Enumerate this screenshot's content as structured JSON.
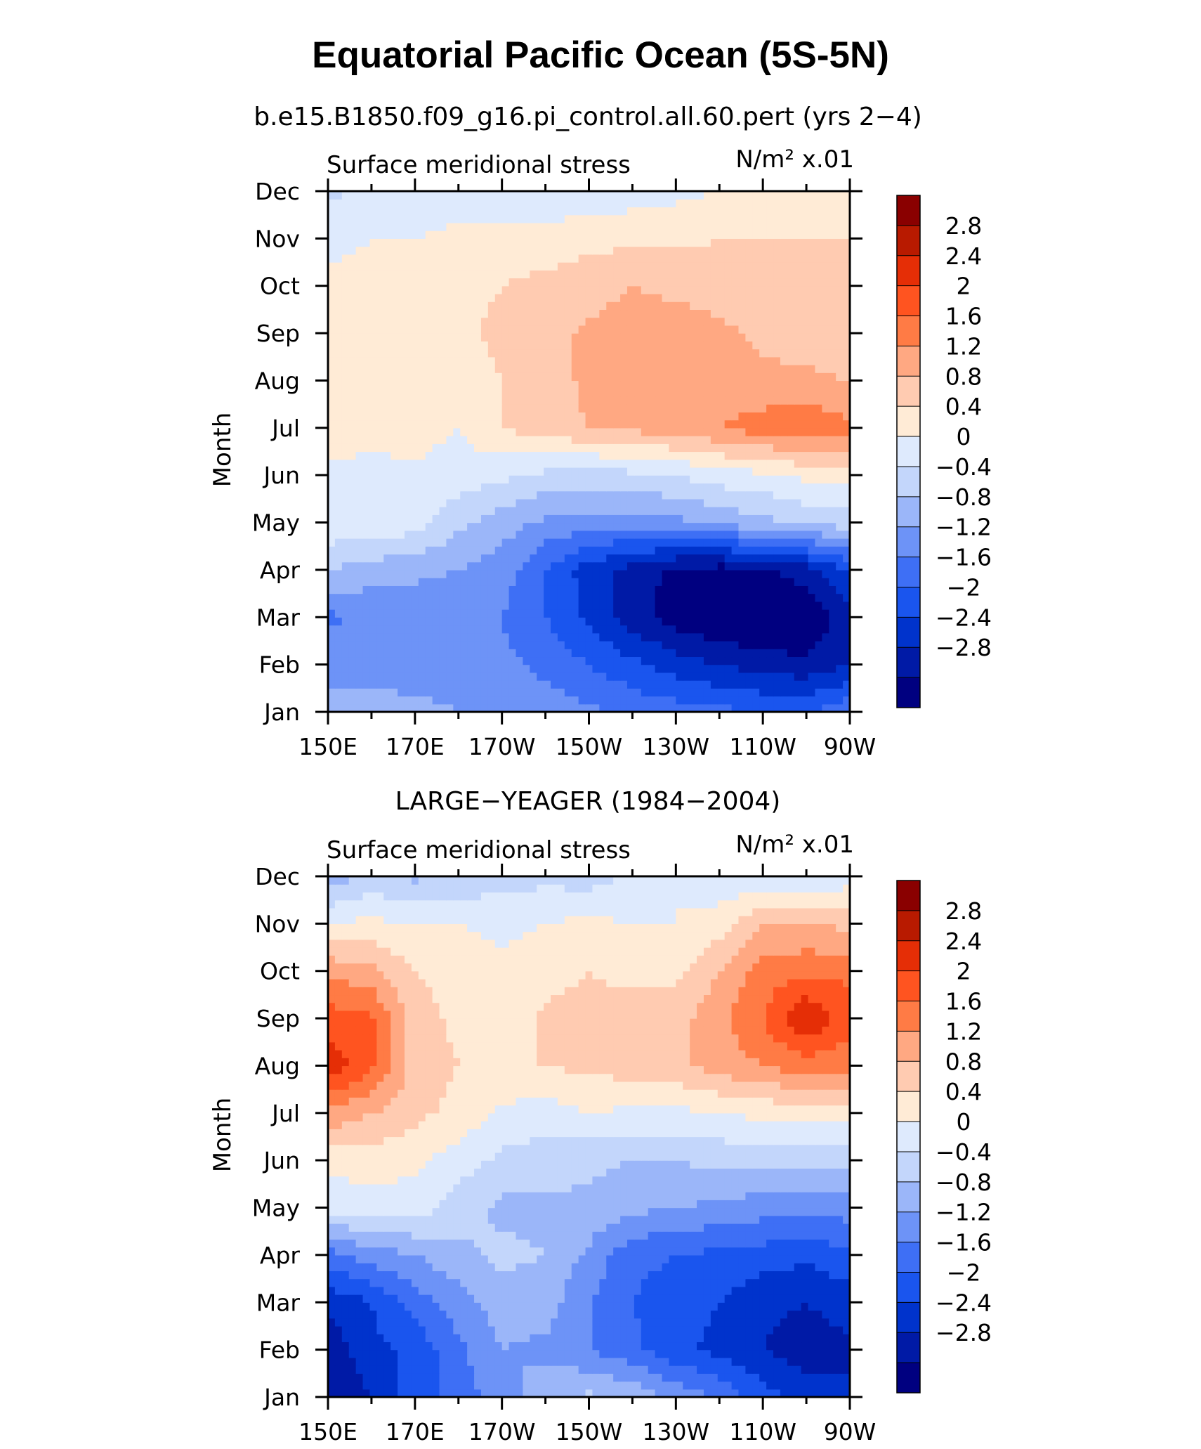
{
  "figure": {
    "title": "Equatorial Pacific Ocean (5S-5N)"
  },
  "chart_data": [
    {
      "type": "heatmap",
      "title": "b.e15.B1850.f09_g16.pi_control.all.60.pert (yrs 2−4)",
      "left_label": "Surface meridional stress",
      "units_label": "N/m² x.01",
      "xlabel": "",
      "ylabel": "Month",
      "x_ticks": [
        "150E",
        "170E",
        "170W",
        "150W",
        "130W",
        "110W",
        "90W"
      ],
      "y_ticks": [
        "Jan",
        "Feb",
        "Mar",
        "Apr",
        "May",
        "Jun",
        "Jul",
        "Aug",
        "Sep",
        "Oct",
        "Nov",
        "Dec"
      ],
      "colorbar_levels": [
        -2.8,
        -2.4,
        -2,
        -1.6,
        -1.2,
        -0.8,
        -0.4,
        0,
        0.4,
        0.8,
        1.2,
        1.6,
        2,
        2.4,
        2.8
      ],
      "colorbar_labels": [
        "2.8",
        "2.4",
        "2",
        "1.6",
        "1.2",
        "0.8",
        "0.4",
        "0",
        "−0.4",
        "−0.8",
        "−1.2",
        "−1.6",
        "−2",
        "−2.4",
        "−2.8"
      ],
      "colors": [
        "#000080",
        "#001aa6",
        "#0033cc",
        "#1a55ee",
        "#3e6ff5",
        "#6d93f7",
        "#9bb6f9",
        "#c3d6fb",
        "#deeafd",
        "#ffebd6",
        "#ffcbb1",
        "#ffa882",
        "#ff7b45",
        "#ff5420",
        "#e52e06",
        "#b81a00",
        "#8a0000"
      ],
      "x_lon": [
        150,
        160,
        170,
        180,
        190,
        200,
        210,
        220,
        230,
        240,
        250,
        260,
        270
      ],
      "z": [
        [
          -0.7,
          -0.6,
          -0.7,
          -0.8,
          -0.9,
          -1.0,
          -1.1,
          -1.3,
          -1.4,
          -1.5,
          -1.6,
          -1.6,
          -1.3
        ],
        [
          -0.9,
          -1.0,
          -1.0,
          -1.0,
          -1.1,
          -1.3,
          -1.6,
          -1.9,
          -2.2,
          -2.4,
          -2.6,
          -2.7,
          -2.4
        ],
        [
          -1.3,
          -1.1,
          -1.1,
          -1.1,
          -1.2,
          -1.6,
          -2.1,
          -2.6,
          -3.0,
          -3.2,
          -3.3,
          -3.2,
          -2.5
        ],
        [
          -0.4,
          -0.6,
          -0.7,
          -0.8,
          -1.0,
          -1.6,
          -2.2,
          -2.6,
          -2.9,
          -3.0,
          -2.9,
          -2.6,
          -1.9
        ],
        [
          0.3,
          0.3,
          0.2,
          -0.3,
          -0.6,
          -0.9,
          -1.0,
          -1.0,
          -0.9,
          -0.7,
          -0.5,
          -0.3,
          -0.2
        ],
        [
          0.3,
          0.3,
          0.3,
          0.2,
          0.1,
          -0.1,
          -0.2,
          -0.1,
          0.0,
          0.2,
          0.3,
          0.5,
          0.6
        ],
        [
          0.6,
          0.5,
          0.6,
          0.4,
          0.8,
          1.0,
          1.2,
          1.3,
          1.4,
          1.6,
          1.8,
          1.9,
          1.7
        ],
        [
          0.7,
          0.5,
          0.6,
          0.5,
          0.8,
          1.0,
          1.3,
          1.4,
          1.5,
          1.4,
          1.3,
          1.3,
          1.2
        ],
        [
          0.6,
          0.5,
          0.5,
          0.7,
          0.9,
          1.0,
          1.3,
          1.4,
          1.4,
          1.3,
          1.1,
          1.0,
          0.9
        ],
        [
          0.5,
          0.5,
          0.6,
          0.7,
          0.8,
          0.9,
          1.0,
          1.2,
          1.1,
          1.0,
          0.9,
          0.9,
          0.9
        ],
        [
          0.3,
          0.4,
          0.4,
          0.5,
          0.6,
          0.6,
          0.7,
          0.7,
          0.7,
          0.8,
          0.8,
          0.8,
          0.8
        ],
        [
          -0.1,
          0.1,
          0.2,
          0.2,
          0.0,
          0.0,
          0.1,
          0.2,
          0.3,
          0.4,
          0.5,
          0.6,
          0.6
        ]
      ]
    },
    {
      "type": "heatmap",
      "title": "LARGE−YEAGER (1984−2004)",
      "left_label": "Surface meridional stress",
      "units_label": "N/m² x.01",
      "xlabel": "",
      "ylabel": "Month",
      "x_ticks": [
        "150E",
        "170E",
        "170W",
        "150W",
        "130W",
        "110W",
        "90W"
      ],
      "y_ticks": [
        "Jan",
        "Feb",
        "Mar",
        "Apr",
        "May",
        "Jun",
        "Jul",
        "Aug",
        "Sep",
        "Oct",
        "Nov",
        "Dec"
      ],
      "colorbar_levels": [
        -2.8,
        -2.4,
        -2,
        -1.6,
        -1.2,
        -0.8,
        -0.4,
        0,
        0.4,
        0.8,
        1.2,
        1.6,
        2,
        2.4,
        2.8
      ],
      "colorbar_labels": [
        "2.8",
        "2.4",
        "2",
        "1.6",
        "1.2",
        "0.8",
        "0.4",
        "0",
        "−0.4",
        "−0.8",
        "−1.2",
        "−1.6",
        "−2",
        "−2.4",
        "−2.8"
      ],
      "colors": [
        "#000080",
        "#001aa6",
        "#0033cc",
        "#1a55ee",
        "#3e6ff5",
        "#6d93f7",
        "#9bb6f9",
        "#c3d6fb",
        "#deeafd",
        "#ffebd6",
        "#ffcbb1",
        "#ffa882",
        "#ff7b45",
        "#ff5420",
        "#e52e06",
        "#b81a00",
        "#8a0000"
      ],
      "x_lon": [
        150,
        160,
        170,
        180,
        190,
        200,
        210,
        220,
        230,
        240,
        250,
        260,
        270
      ],
      "z": [
        [
          -2.8,
          -2.4,
          -1.8,
          -1.4,
          -1.0,
          -0.5,
          -0.3,
          -0.5,
          -0.9,
          -1.3,
          -1.8,
          -2.2,
          -2.3
        ],
        [
          -2.7,
          -2.1,
          -1.9,
          -1.3,
          -0.8,
          -0.9,
          -1.2,
          -1.5,
          -1.9,
          -2.1,
          -2.4,
          -2.6,
          -2.5
        ],
        [
          -2.3,
          -2.0,
          -1.4,
          -1.0,
          -0.6,
          -0.6,
          -1.2,
          -1.6,
          -1.8,
          -2.0,
          -2.3,
          -2.4,
          -2.2
        ],
        [
          -1.4,
          -1.0,
          -0.8,
          -0.5,
          -0.3,
          -0.4,
          -0.9,
          -1.5,
          -1.6,
          -1.7,
          -1.8,
          -1.9,
          -1.7
        ],
        [
          0.2,
          0.2,
          0.2,
          -0.2,
          -0.5,
          -0.5,
          -0.5,
          -0.7,
          -0.8,
          -0.9,
          -1.0,
          -1.1,
          -1.0
        ],
        [
          0.5,
          0.6,
          0.5,
          0.2,
          -0.1,
          -0.2,
          -0.3,
          -0.4,
          -0.4,
          -0.3,
          -0.3,
          -0.3,
          -0.2
        ],
        [
          1.5,
          1.2,
          0.9,
          0.7,
          0.3,
          0.2,
          0.4,
          0.3,
          0.3,
          0.4,
          0.5,
          0.6,
          0.6
        ],
        [
          2.7,
          2.1,
          1.0,
          0.8,
          0.8,
          0.8,
          0.9,
          1.0,
          1.1,
          1.4,
          1.6,
          1.8,
          1.7
        ],
        [
          2.2,
          2.1,
          1.0,
          0.7,
          0.5,
          0.9,
          1.0,
          1.1,
          1.0,
          1.5,
          2.0,
          2.8,
          2.2
        ],
        [
          1.5,
          1.3,
          0.8,
          0.6,
          0.5,
          0.6,
          0.8,
          0.6,
          0.7,
          1.2,
          1.8,
          1.9,
          1.9
        ],
        [
          0.4,
          0.5,
          0.4,
          0.4,
          0.3,
          0.4,
          0.5,
          0.4,
          0.4,
          0.6,
          1.2,
          1.2,
          1.1
        ],
        [
          -0.6,
          -0.3,
          -0.5,
          -0.3,
          -0.2,
          -0.1,
          -0.2,
          0.1,
          0.4,
          0.1,
          0.1,
          -0.1,
          0.2
        ]
      ]
    }
  ]
}
